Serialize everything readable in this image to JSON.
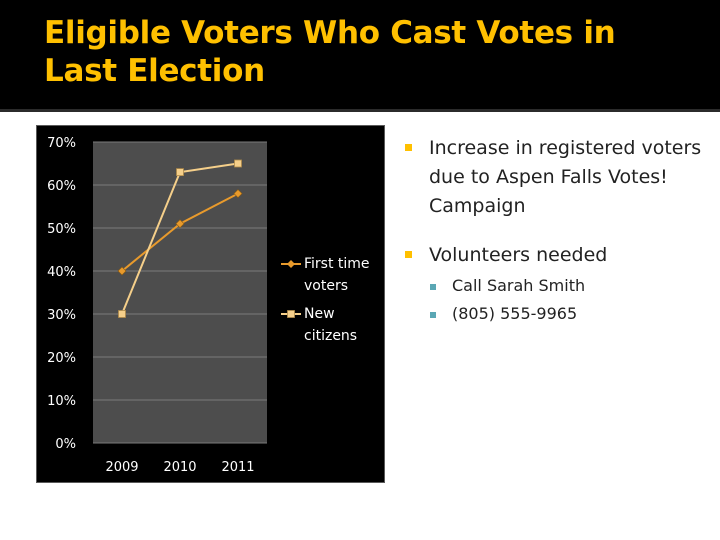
{
  "slide": {
    "title": "Eligible Voters Who Cast Votes in Last Election",
    "bullets": [
      {
        "text": "Increase in registered voters due to Aspen Falls Votes! Campaign",
        "sub": []
      },
      {
        "text": "Volunteers needed",
        "sub": [
          "Call Sarah Smith",
          "(805) 555-9965"
        ]
      }
    ],
    "colors": {
      "title": "#ffc000",
      "background_header": "#000000",
      "bullet": "#ffc000",
      "sub_bullet": "#5aa7b4"
    }
  },
  "chart_data": {
    "type": "line",
    "title": "",
    "xlabel": "",
    "ylabel": "",
    "categories": [
      "2009",
      "2010",
      "2011"
    ],
    "yticks": [
      "0%",
      "10%",
      "20%",
      "30%",
      "40%",
      "50%",
      "60%",
      "70%"
    ],
    "ylim": [
      0,
      70
    ],
    "grid": true,
    "legend": "right",
    "series": [
      {
        "name": "First time voters",
        "values": [
          40,
          51,
          58
        ],
        "color": "#e89a2c",
        "marker": "diamond"
      },
      {
        "name": "New citizens",
        "values": [
          30,
          63,
          65
        ],
        "color": "#f5cf8a",
        "marker": "square"
      }
    ]
  }
}
